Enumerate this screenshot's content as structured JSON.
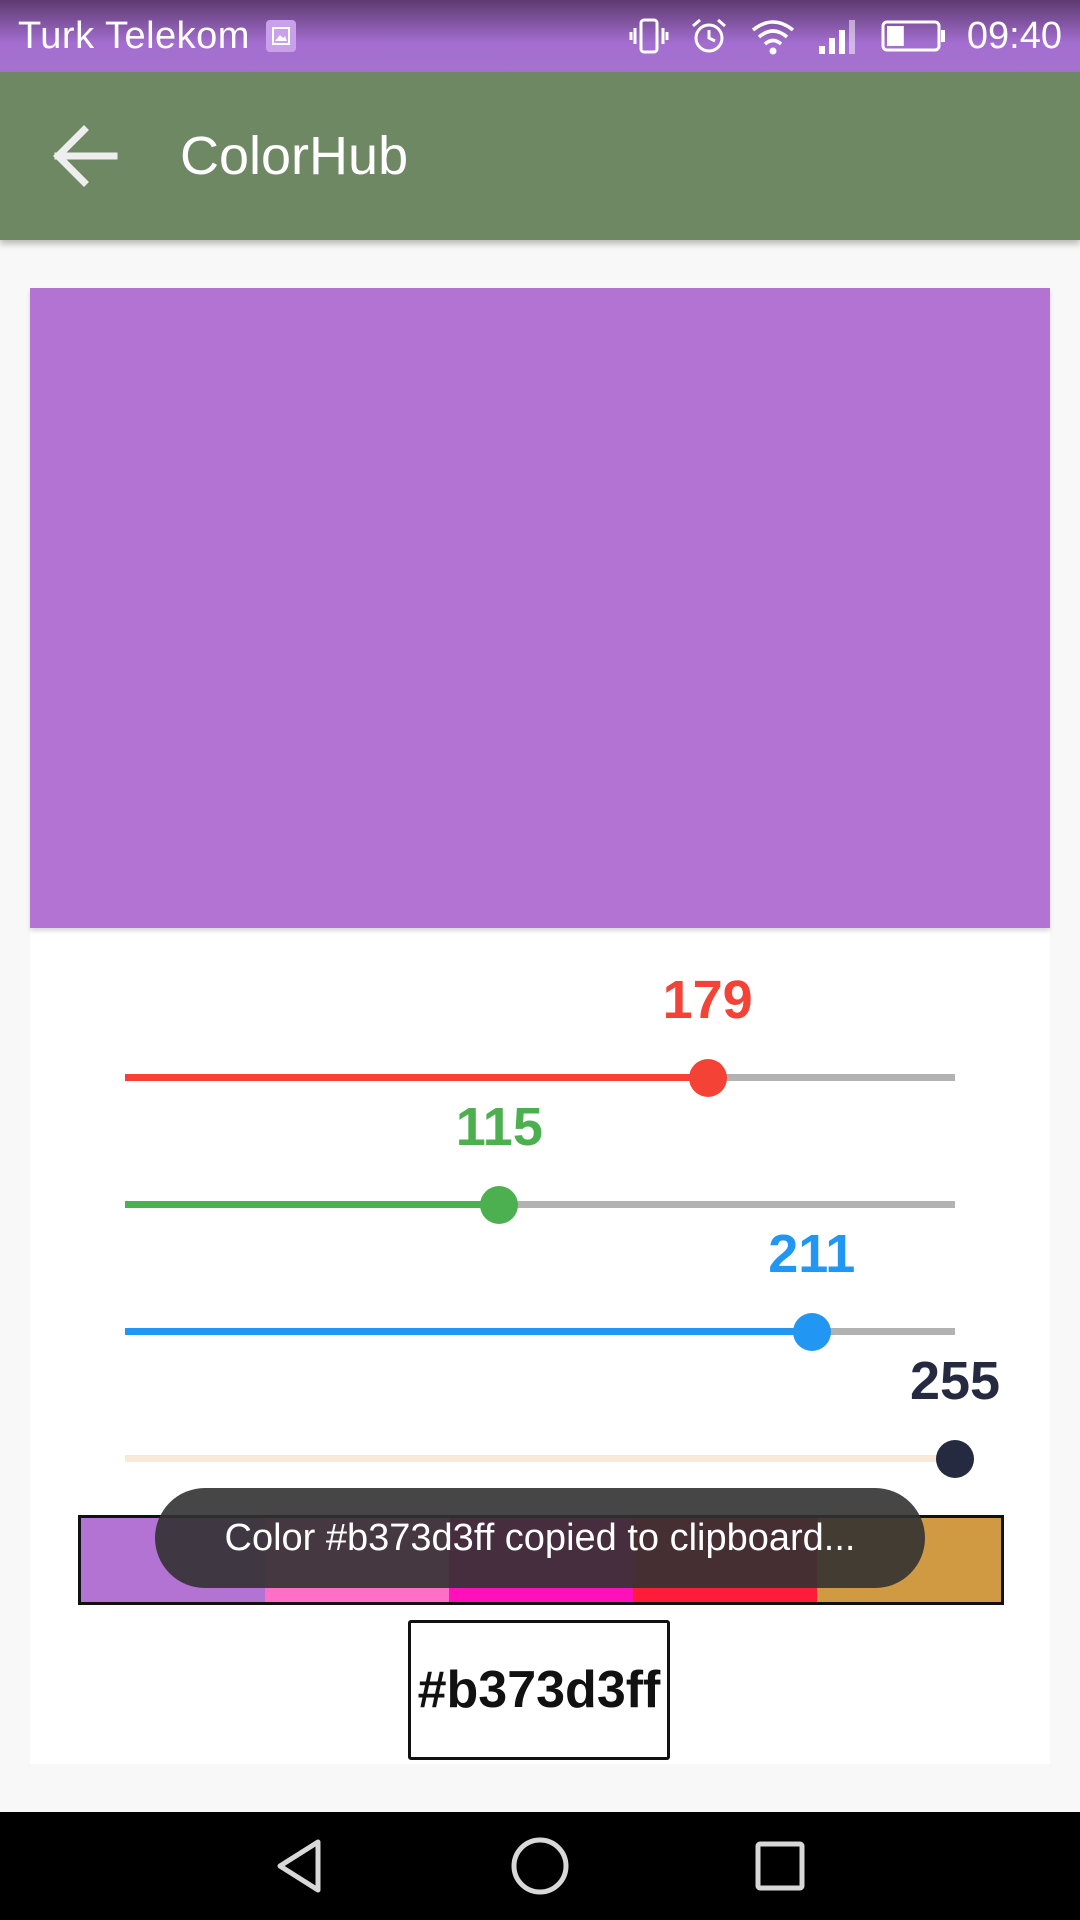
{
  "status_bar": {
    "carrier": "Turk Telekom",
    "time": "09:40",
    "icons": [
      "image-notification-icon",
      "vibrate-icon",
      "alarm-icon",
      "wifi-icon",
      "signal-icon",
      "battery-icon"
    ],
    "battery_level": 0.35
  },
  "app_bar": {
    "title": "ColorHub",
    "back_icon": "arrow-back-icon",
    "color": "#6e8864"
  },
  "preview": {
    "color": "#b373d3"
  },
  "sliders": [
    {
      "name": "red",
      "value": 179,
      "max": 255,
      "color": "#f44336"
    },
    {
      "name": "green",
      "value": 115,
      "max": 255,
      "color": "#4caf50"
    },
    {
      "name": "blue",
      "value": 211,
      "max": 255,
      "color": "#2196f3"
    },
    {
      "name": "alpha",
      "value": 255,
      "max": 255,
      "color": "#262a40",
      "track_color": "#fbe9d7"
    }
  ],
  "palette": {
    "swatches": [
      "#b373d3",
      "#ff6fc8",
      "#ff10bb",
      "#ff1c3b",
      "#d09a42"
    ]
  },
  "toast": {
    "message": "Color #b373d3ff copied to clipboard..."
  },
  "hex_value": "#b373d3ff",
  "nav_bar": {
    "icons": [
      "back-triangle-icon",
      "home-circle-icon",
      "recents-square-icon"
    ]
  }
}
